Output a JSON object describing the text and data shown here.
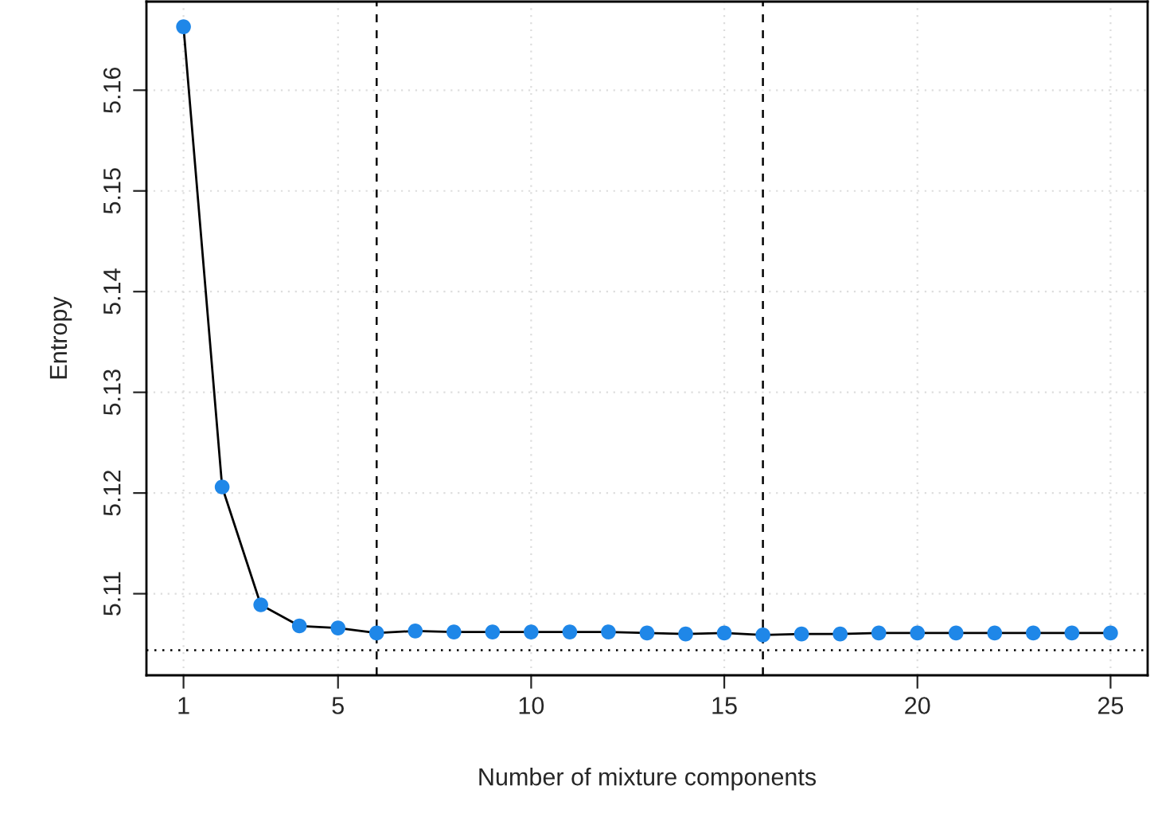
{
  "chart_data": {
    "type": "line",
    "xlabel": "Number of mixture components",
    "ylabel": "Entropy",
    "x": [
      1,
      2,
      3,
      4,
      5,
      6,
      7,
      8,
      9,
      10,
      11,
      12,
      13,
      14,
      15,
      16,
      17,
      18,
      19,
      20,
      21,
      22,
      23,
      24,
      25
    ],
    "series": [
      {
        "color": "#1f87e8",
        "values": [
          5.1663,
          5.1206,
          5.1089,
          5.1068,
          5.1066,
          5.1061,
          5.1063,
          5.1062,
          5.1062,
          5.1062,
          5.1062,
          5.1062,
          5.1061,
          5.106,
          5.1061,
          5.1059,
          5.106,
          5.106,
          5.1061,
          5.1061,
          5.1061,
          5.1061,
          5.1061,
          5.1061,
          5.1061
        ]
      }
    ],
    "xlim": [
      0.04,
      25.96
    ],
    "ylim": [
      5.1019,
      5.1688
    ],
    "xticks": [
      1,
      5,
      10,
      15,
      20,
      25
    ],
    "yticks": [
      5.11,
      5.12,
      5.13,
      5.14,
      5.15,
      5.16
    ],
    "grid": true,
    "marker": "circle",
    "line_style": "solid",
    "ref_lines": [
      {
        "axis": "x",
        "value": 6,
        "line_style": "dashed"
      },
      {
        "axis": "x",
        "value": 16,
        "line_style": "dashed"
      },
      {
        "axis": "y",
        "value": 5.1044,
        "line_style": "dotted"
      }
    ]
  }
}
